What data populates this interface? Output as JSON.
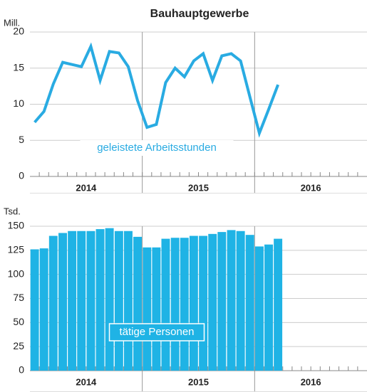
{
  "chart_data": [
    {
      "type": "line",
      "title": "Bauhauptgewerbe",
      "y_label": "Mill.",
      "annotation": "geleistete Arbeitsstunden",
      "color": "#29abe2",
      "x": [
        2014.042,
        2014.125,
        2014.208,
        2014.292,
        2014.375,
        2014.458,
        2014.542,
        2014.625,
        2014.708,
        2014.792,
        2014.875,
        2014.958,
        2015.042,
        2015.125,
        2015.208,
        2015.292,
        2015.375,
        2015.458,
        2015.542,
        2015.625,
        2015.708,
        2015.792,
        2015.875,
        2015.958,
        2016.042,
        2016.125,
        2016.208
      ],
      "values": [
        7.5,
        9.0,
        12.8,
        15.8,
        15.5,
        15.2,
        18.0,
        13.3,
        17.3,
        17.1,
        15.2,
        10.5,
        6.8,
        7.2,
        13.0,
        15.0,
        13.8,
        16.0,
        17.0,
        13.3,
        16.7,
        17.0,
        16.0,
        11.0,
        6.0,
        9.3,
        12.7
      ],
      "xlim": [
        2014,
        2017
      ],
      "xticks": [
        {
          "value": 2014.5,
          "label": "2014"
        },
        {
          "value": 2015.5,
          "label": "2015"
        },
        {
          "value": 2016.5,
          "label": "2016"
        }
      ],
      "ylim": [
        0,
        20
      ],
      "yticks": [
        0,
        5,
        10,
        15,
        20
      ],
      "grid": true
    },
    {
      "type": "bar",
      "y_label": "Tsd.",
      "annotation": "tätige Personen",
      "color": "#1fb3e5",
      "x": [
        2014.042,
        2014.125,
        2014.208,
        2014.292,
        2014.375,
        2014.458,
        2014.542,
        2014.625,
        2014.708,
        2014.792,
        2014.875,
        2014.958,
        2015.042,
        2015.125,
        2015.208,
        2015.292,
        2015.375,
        2015.458,
        2015.542,
        2015.625,
        2015.708,
        2015.792,
        2015.875,
        2015.958,
        2016.042,
        2016.125,
        2016.208
      ],
      "values": [
        126,
        127,
        140,
        143,
        145,
        145,
        145,
        147,
        148,
        145,
        145,
        139,
        128,
        128,
        137,
        138,
        138,
        140,
        140,
        142,
        144,
        146,
        145,
        141,
        129,
        131,
        137
      ],
      "xlim": [
        2014,
        2017
      ],
      "xticks": [
        {
          "value": 2014.5,
          "label": "2014"
        },
        {
          "value": 2015.5,
          "label": "2015"
        },
        {
          "value": 2016.5,
          "label": "2016"
        }
      ],
      "ylim": [
        0,
        150
      ],
      "yticks": [
        0,
        25,
        50,
        75,
        100,
        125,
        150
      ],
      "grid": true
    }
  ]
}
